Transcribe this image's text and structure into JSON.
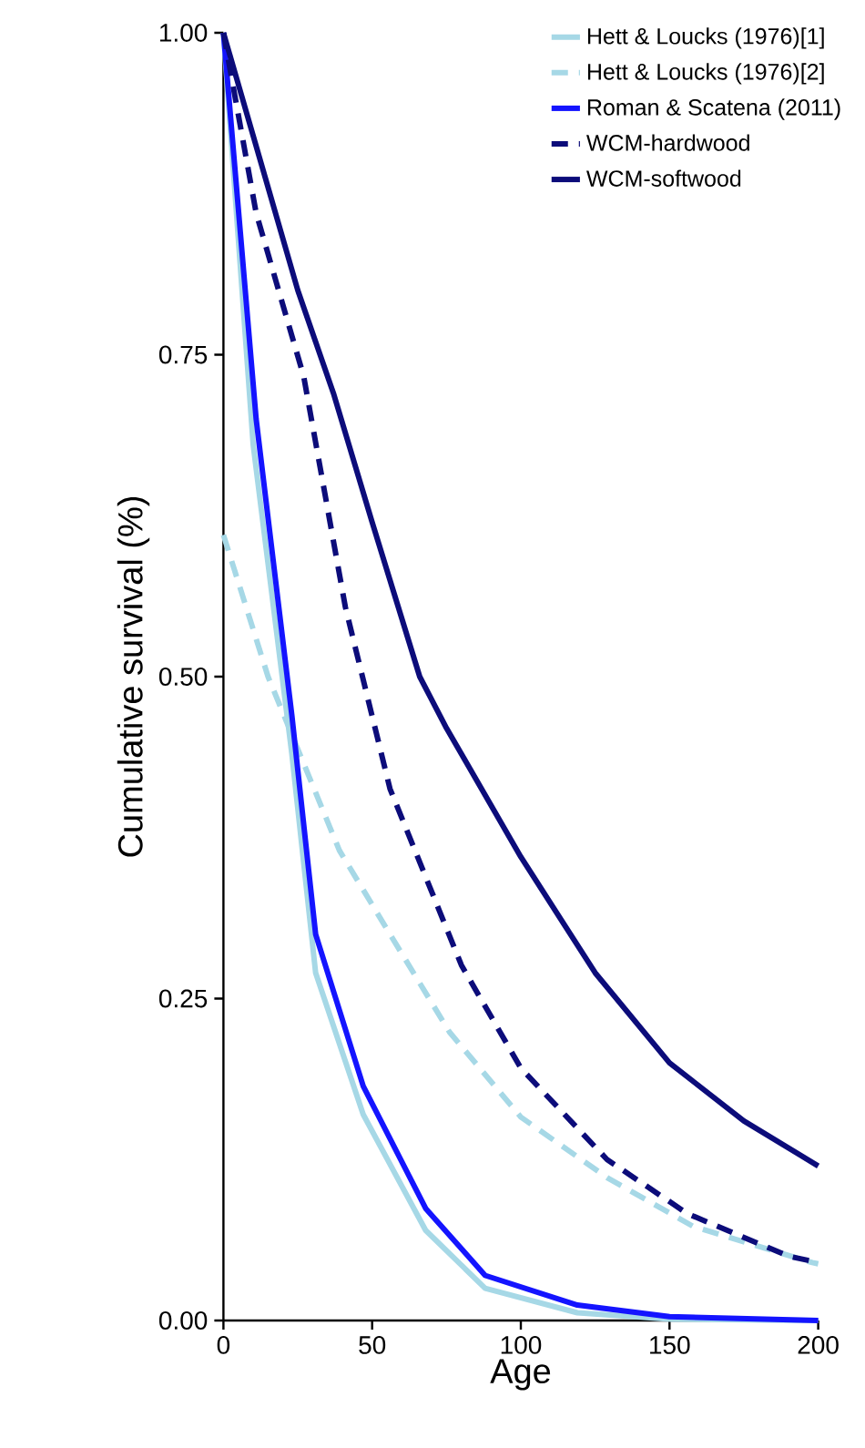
{
  "chart_data": {
    "type": "line",
    "xlabel": "Age",
    "ylabel": "Cumulative survival (%)",
    "xlim": [
      0,
      200
    ],
    "ylim": [
      0,
      1
    ],
    "xticks": [
      0,
      50,
      100,
      150,
      200
    ],
    "yticks": [
      {
        "value": 0,
        "label": "0.00"
      },
      {
        "value": 0.25,
        "label": "0.25"
      },
      {
        "value": 0.5,
        "label": "0.50"
      },
      {
        "value": 0.75,
        "label": "0.75"
      },
      {
        "value": 1,
        "label": "1.00"
      }
    ],
    "legend": "top right",
    "series": [
      {
        "name": "Hett & Loucks (1976)[1]",
        "color": "#a6d8e6",
        "line_style": "solid",
        "x": [
          0,
          10,
          23,
          31,
          47,
          68,
          88,
          119,
          150,
          200
        ],
        "values": [
          1.0,
          0.68,
          0.44,
          0.27,
          0.16,
          0.07,
          0.025,
          0.006,
          0.001,
          0.0
        ]
      },
      {
        "name": "Hett & Loucks (1976)[2]",
        "color": "#a6d8e6",
        "line_style": "dashed",
        "x": [
          0,
          15,
          39,
          56,
          76,
          100,
          129,
          158,
          198,
          200
        ],
        "values": [
          0.61,
          0.5,
          0.365,
          0.3,
          0.224,
          0.158,
          0.111,
          0.073,
          0.045,
          0.044
        ]
      },
      {
        "name": "Roman & Scatena (2011)",
        "color": "#1414ff",
        "line_style": "solid",
        "x": [
          0,
          11,
          23,
          31,
          47,
          68,
          88,
          119,
          150,
          200
        ],
        "values": [
          1.0,
          0.7,
          0.47,
          0.3,
          0.182,
          0.087,
          0.035,
          0.012,
          0.003,
          0.0
        ]
      },
      {
        "name": "WCM-hardwood",
        "color": "#0c0c7a",
        "line_style": "dashed",
        "x": [
          0,
          11,
          27,
          41,
          56,
          80,
          100,
          129,
          156,
          190,
          200
        ],
        "values": [
          1.0,
          0.86,
          0.733,
          0.554,
          0.413,
          0.276,
          0.196,
          0.125,
          0.083,
          0.05,
          0.045
        ]
      },
      {
        "name": "WCM-softwood",
        "color": "#0c0c7a",
        "line_style": "solid",
        "x": [
          0,
          10,
          25,
          37,
          50,
          66,
          75,
          100,
          125,
          150,
          175,
          200
        ],
        "values": [
          1.0,
          0.92,
          0.8,
          0.72,
          0.62,
          0.5,
          0.46,
          0.36,
          0.27,
          0.2,
          0.155,
          0.12
        ]
      }
    ]
  }
}
